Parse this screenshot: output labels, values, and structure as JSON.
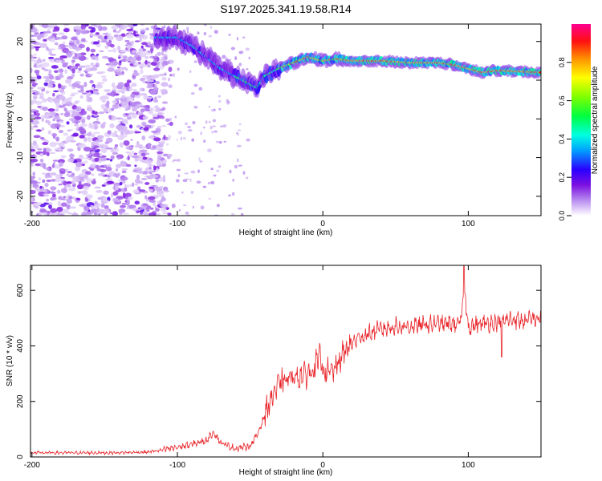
{
  "figure_title": "S197.2025.341.19.58.R14",
  "chart_data": [
    {
      "type": "heatmap",
      "title": "",
      "xlabel": "Height of straight line (km)",
      "ylabel": "Frequency (Hz)",
      "xlim": [
        -201,
        150
      ],
      "ylim": [
        -25,
        24.5
      ],
      "xticks": [
        -200,
        -100,
        0,
        100
      ],
      "yticks": [
        -20,
        -10,
        0,
        10,
        20
      ],
      "colorbar": {
        "label": "Normalized spectral amplitude",
        "range": [
          0,
          1
        ],
        "ticks": [
          0.0,
          0.2,
          0.4,
          0.6,
          0.8
        ],
        "tick_labels": [
          "0.0",
          "0.2",
          "0.4",
          "0.6",
          "0.8"
        ],
        "colormap": "rainbow (lavender-purple-blue-cyan-green-yellow-orange-red-magenta)"
      },
      "ridge": {
        "description": "Dominant spectral ridge: frequency vs height",
        "points": [
          [
            -110,
            21
          ],
          [
            -100,
            21
          ],
          [
            -90,
            19
          ],
          [
            -80,
            16
          ],
          [
            -70,
            13
          ],
          [
            -60,
            11
          ],
          [
            -50,
            9
          ],
          [
            -45,
            8
          ],
          [
            -40,
            11
          ],
          [
            -30,
            13
          ],
          [
            -20,
            14.5
          ],
          [
            -10,
            16
          ],
          [
            0,
            15
          ],
          [
            10,
            15.5
          ],
          [
            20,
            15
          ],
          [
            40,
            15
          ],
          [
            60,
            14.5
          ],
          [
            80,
            14.5
          ],
          [
            90,
            14
          ],
          [
            100,
            13
          ],
          [
            110,
            12
          ],
          [
            120,
            12.5
          ],
          [
            150,
            12
          ]
        ]
      },
      "noise_region": {
        "description": "Broadband low-amplitude noise scattered across all frequencies",
        "x_range": [
          -201,
          -115
        ],
        "y_range": [
          -25,
          24.5
        ]
      }
    },
    {
      "type": "line",
      "title": "",
      "xlabel": "Height of straight line (km)",
      "ylabel": "SNR (10 * v/v)",
      "xlim": [
        -201,
        150
      ],
      "ylim": [
        0,
        690
      ],
      "xticks": [
        -200,
        -100,
        0,
        100
      ],
      "yticks": [
        0,
        200,
        400,
        600
      ],
      "color": "#e8252a",
      "series": [
        {
          "name": "SNR",
          "x": [
            -200,
            -180,
            -160,
            -140,
            -120,
            -110,
            -100,
            -90,
            -80,
            -75,
            -70,
            -65,
            -60,
            -50,
            -45,
            -40,
            -35,
            -30,
            -25,
            -20,
            -15,
            -10,
            -5,
            -2,
            0,
            5,
            10,
            15,
            20,
            25,
            30,
            40,
            50,
            60,
            70,
            80,
            90,
            95,
            97,
            100,
            110,
            120,
            125,
            130,
            140,
            145,
            150
          ],
          "values": [
            15,
            15,
            15,
            15,
            18,
            25,
            35,
            45,
            60,
            90,
            50,
            40,
            30,
            40,
            80,
            150,
            220,
            260,
            280,
            290,
            290,
            300,
            330,
            360,
            320,
            300,
            330,
            380,
            410,
            430,
            440,
            460,
            470,
            470,
            475,
            480,
            480,
            480,
            620,
            470,
            480,
            485,
            490,
            495,
            490,
            500,
            495
          ]
        }
      ]
    }
  ]
}
